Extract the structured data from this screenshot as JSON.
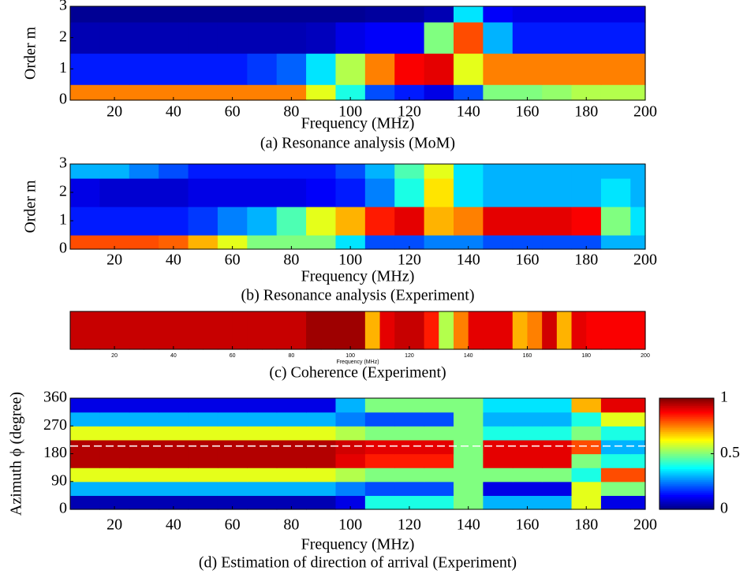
{
  "chart_data": [
    {
      "type": "heatmap",
      "caption": "(a) Resonance analysis (MoM)",
      "xlabel": "Frequency (MHz)",
      "ylabel": "Order m",
      "xlim": [
        5,
        200
      ],
      "ylim": [
        0,
        3
      ],
      "xticks": [
        20,
        40,
        60,
        80,
        100,
        120,
        140,
        160,
        180,
        200
      ],
      "yticks": [
        0,
        1,
        2,
        3
      ],
      "x_edges": [
        5,
        15,
        25,
        35,
        45,
        55,
        65,
        75,
        85,
        95,
        105,
        115,
        125,
        135,
        145,
        155,
        165,
        175,
        185,
        195,
        200
      ],
      "y_edges": [
        0,
        0.5,
        1.5,
        2.5,
        3
      ],
      "values": [
        [
          0.75,
          0.75,
          0.75,
          0.75,
          0.75,
          0.75,
          0.75,
          0.75,
          0.6,
          0.4,
          0.2,
          0.15,
          0.1,
          0.2,
          0.5,
          0.5,
          0.52,
          0.55,
          0.55,
          0.55
        ],
        [
          0.15,
          0.15,
          0.15,
          0.15,
          0.15,
          0.15,
          0.18,
          0.22,
          0.35,
          0.55,
          0.75,
          0.88,
          0.9,
          0.6,
          0.75,
          0.75,
          0.75,
          0.75,
          0.75,
          0.75
        ],
        [
          0.05,
          0.05,
          0.05,
          0.05,
          0.05,
          0.05,
          0.05,
          0.05,
          0.06,
          0.1,
          0.12,
          0.12,
          0.5,
          0.8,
          0.3,
          0.15,
          0.15,
          0.15,
          0.15,
          0.15
        ],
        [
          0.02,
          0.02,
          0.02,
          0.02,
          0.02,
          0.02,
          0.02,
          0.02,
          0.02,
          0.02,
          0.03,
          0.03,
          0.05,
          0.35,
          0.12,
          0.1,
          0.1,
          0.1,
          0.1,
          0.1
        ]
      ]
    },
    {
      "type": "heatmap",
      "caption": "(b) Resonance analysis (Experiment)",
      "xlabel": "Frequency (MHz)",
      "ylabel": "Order m",
      "xlim": [
        5,
        200
      ],
      "ylim": [
        0,
        3
      ],
      "xticks": [
        20,
        40,
        60,
        80,
        100,
        120,
        140,
        160,
        180,
        200
      ],
      "yticks": [
        0,
        1,
        2,
        3
      ],
      "x_edges": [
        5,
        15,
        25,
        35,
        45,
        55,
        65,
        75,
        85,
        95,
        105,
        115,
        125,
        135,
        145,
        155,
        165,
        175,
        185,
        195,
        200
      ],
      "y_edges": [
        0,
        0.5,
        1.5,
        2.5,
        3
      ],
      "values": [
        [
          0.8,
          0.8,
          0.8,
          0.78,
          0.7,
          0.6,
          0.5,
          0.5,
          0.5,
          0.35,
          0.2,
          0.2,
          0.25,
          0.25,
          0.2,
          0.2,
          0.2,
          0.2,
          0.3,
          0.3
        ],
        [
          0.15,
          0.15,
          0.15,
          0.15,
          0.18,
          0.25,
          0.3,
          0.45,
          0.6,
          0.7,
          0.85,
          0.9,
          0.7,
          0.75,
          0.9,
          0.9,
          0.9,
          0.88,
          0.5,
          0.35
        ],
        [
          0.1,
          0.08,
          0.08,
          0.08,
          0.1,
          0.1,
          0.1,
          0.1,
          0.12,
          0.15,
          0.25,
          0.4,
          0.65,
          0.35,
          0.3,
          0.3,
          0.3,
          0.3,
          0.35,
          0.3
        ],
        [
          0.3,
          0.3,
          0.25,
          0.2,
          0.15,
          0.15,
          0.15,
          0.15,
          0.15,
          0.2,
          0.3,
          0.45,
          0.6,
          0.35,
          0.3,
          0.3,
          0.3,
          0.3,
          0.3,
          0.3
        ]
      ]
    },
    {
      "type": "heatmap",
      "caption": "(c) Coherence (Experiment)",
      "xlabel": "Frequency (MHz)",
      "xlim": [
        5,
        200
      ],
      "ylim": [
        0,
        1
      ],
      "xticks": [
        20,
        40,
        60,
        80,
        100,
        120,
        140,
        160,
        180,
        200
      ],
      "x_edges": [
        5,
        10,
        15,
        20,
        25,
        30,
        35,
        40,
        45,
        50,
        55,
        60,
        65,
        70,
        75,
        80,
        85,
        90,
        95,
        100,
        105,
        110,
        115,
        120,
        125,
        130,
        135,
        140,
        145,
        150,
        155,
        160,
        165,
        170,
        175,
        180,
        185,
        190,
        195,
        200
      ],
      "y_edges": [
        0,
        1
      ],
      "values": [
        [
          0.93,
          0.93,
          0.93,
          0.93,
          0.93,
          0.93,
          0.93,
          0.93,
          0.93,
          0.93,
          0.93,
          0.93,
          0.93,
          0.93,
          0.93,
          0.93,
          0.97,
          0.97,
          0.97,
          0.97,
          0.7,
          0.9,
          0.93,
          0.93,
          0.85,
          0.55,
          0.75,
          0.9,
          0.9,
          0.9,
          0.7,
          0.75,
          0.92,
          0.7,
          0.9,
          0.88,
          0.88,
          0.88,
          0.88
        ]
      ]
    },
    {
      "type": "heatmap",
      "caption": "(d) Estimation of direction of arrival (Experiment)",
      "xlabel": "Frequency (MHz)",
      "ylabel": "Azimuth ϕ (degree)",
      "xlim": [
        5,
        200
      ],
      "ylim": [
        0,
        360
      ],
      "xticks": [
        20,
        40,
        60,
        80,
        100,
        120,
        140,
        160,
        180,
        200
      ],
      "yticks": [
        0,
        90,
        180,
        270,
        360
      ],
      "x_edges": [
        5,
        15,
        25,
        35,
        45,
        55,
        65,
        75,
        85,
        95,
        105,
        115,
        125,
        135,
        145,
        155,
        165,
        175,
        185,
        195,
        200
      ],
      "y_edges": [
        0,
        45,
        90,
        135,
        180,
        225,
        270,
        315,
        360
      ],
      "reference_line": 205,
      "colorbar": {
        "lim": [
          0,
          1
        ],
        "ticks": [
          0,
          0.5,
          1
        ]
      },
      "values": [
        [
          0.05,
          0.05,
          0.05,
          0.05,
          0.05,
          0.05,
          0.05,
          0.05,
          0.05,
          0.1,
          0.4,
          0.4,
          0.4,
          0.5,
          0.3,
          0.3,
          0.3,
          0.6,
          0.1,
          0.1
        ],
        [
          0.3,
          0.3,
          0.3,
          0.3,
          0.3,
          0.3,
          0.3,
          0.3,
          0.3,
          0.25,
          0.2,
          0.2,
          0.2,
          0.5,
          0.1,
          0.1,
          0.1,
          0.6,
          0.5,
          0.5
        ],
        [
          0.6,
          0.6,
          0.6,
          0.6,
          0.6,
          0.6,
          0.6,
          0.6,
          0.6,
          0.55,
          0.5,
          0.5,
          0.5,
          0.5,
          0.5,
          0.5,
          0.5,
          0.4,
          0.8,
          0.8
        ],
        [
          0.95,
          0.95,
          0.95,
          0.95,
          0.95,
          0.95,
          0.95,
          0.95,
          0.95,
          0.9,
          0.85,
          0.85,
          0.85,
          0.5,
          0.9,
          0.9,
          0.9,
          0.5,
          0.4,
          0.4
        ],
        [
          0.95,
          0.95,
          0.95,
          0.95,
          0.95,
          0.95,
          0.95,
          0.95,
          0.95,
          0.92,
          0.9,
          0.9,
          0.9,
          0.5,
          0.9,
          0.9,
          0.9,
          0.8,
          0.3,
          0.3
        ],
        [
          0.6,
          0.6,
          0.6,
          0.6,
          0.6,
          0.6,
          0.6,
          0.6,
          0.6,
          0.55,
          0.5,
          0.5,
          0.5,
          0.5,
          0.4,
          0.4,
          0.4,
          0.5,
          0.4,
          0.4
        ],
        [
          0.3,
          0.3,
          0.3,
          0.3,
          0.3,
          0.3,
          0.3,
          0.3,
          0.3,
          0.25,
          0.2,
          0.2,
          0.2,
          0.5,
          0.3,
          0.3,
          0.3,
          0.4,
          0.6,
          0.6
        ],
        [
          0.1,
          0.1,
          0.1,
          0.1,
          0.1,
          0.1,
          0.1,
          0.1,
          0.1,
          0.3,
          0.5,
          0.5,
          0.5,
          0.5,
          0.35,
          0.35,
          0.35,
          0.7,
          0.9,
          0.9
        ]
      ]
    }
  ]
}
